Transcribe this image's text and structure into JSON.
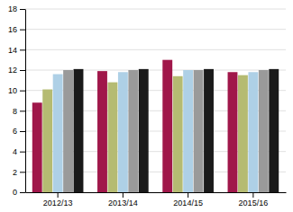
{
  "chart_data": {
    "type": "bar",
    "categories": [
      "2012/13",
      "2013/14",
      "2014/15",
      "2015/16"
    ],
    "series": [
      {
        "color": "#a0174a",
        "values": [
          8.8,
          11.9,
          13.0,
          11.8
        ]
      },
      {
        "color": "#b5bb72",
        "values": [
          10.1,
          10.8,
          11.4,
          11.5
        ]
      },
      {
        "color": "#aed0e6",
        "values": [
          11.6,
          11.8,
          12.0,
          11.8
        ]
      },
      {
        "color": "#9a9a9a",
        "values": [
          12.0,
          12.0,
          12.0,
          12.0
        ]
      },
      {
        "color": "#1a1a1a",
        "values": [
          12.1,
          12.1,
          12.1,
          12.1
        ]
      }
    ],
    "ylim": [
      0,
      18
    ],
    "yticks": [
      0,
      2,
      4,
      6,
      8,
      10,
      12,
      14,
      16,
      18
    ],
    "grid": true
  }
}
